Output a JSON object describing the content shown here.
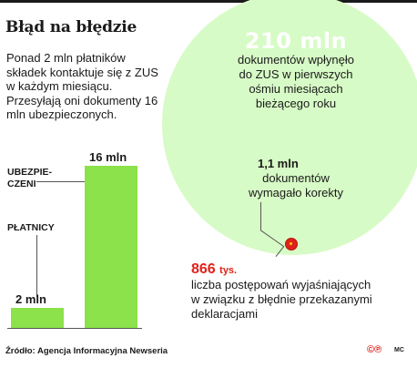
{
  "title": "Błąd na błędzie",
  "intro": "Ponad 2 mln płatników składek kontaktuje się z ZUS w każdym miesiącu. Przesyłają oni dokumenty 16 mln ubezpieczonych.",
  "chart_data": {
    "type": "bar",
    "categories": [
      "PŁATNICY",
      "UBEZPIE-CZENI"
    ],
    "values": [
      2,
      16
    ],
    "value_labels": [
      "2 mln",
      "16 mln"
    ],
    "unit": "mln",
    "colors": [
      "#8be24a",
      "#8be24a"
    ]
  },
  "circles": {
    "big": {
      "number": "210 mln",
      "lines": [
        "dokumentów wpłynęło",
        "do ZUS w pierwszych",
        "ośmiu miesiącach",
        "bieżącego roku"
      ],
      "color": "#d7fbc6"
    },
    "middle": {
      "number": "1,1 mln",
      "lines": [
        "dokumentów",
        "wymagało korekty"
      ],
      "color": "#a7f16b"
    },
    "small": {
      "number": "866",
      "unit": "tys.",
      "lines": [
        "liczba postępowań wyjaśniających",
        "w związku z błędnie przekazanymi",
        "deklaracjami"
      ],
      "color": "#e0221a"
    }
  },
  "source": "Źródło: Agencja Informacyjna Newseria",
  "logo": "©℗",
  "initials": "MC"
}
